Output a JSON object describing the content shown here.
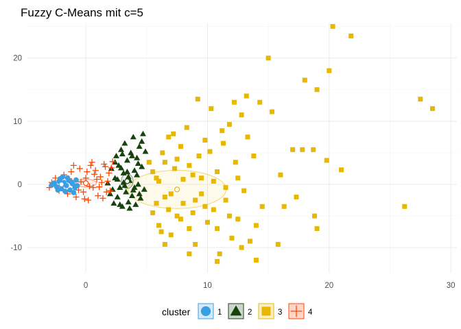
{
  "chart_data": {
    "type": "scatter",
    "title": "Fuzzy C-Means mit c=5",
    "xlabel": "",
    "ylabel": "",
    "xlim": [
      -4.8,
      30.5
    ],
    "ylim": [
      -14,
      25.5
    ],
    "x_ticks": [
      0,
      10,
      20,
      30
    ],
    "y_ticks": [
      -10,
      0,
      10,
      20
    ],
    "grid": true,
    "legend": {
      "title": "cluster",
      "position": "bottom",
      "entries": [
        {
          "label": "1",
          "shape": "circle",
          "color": "#3a9fe2"
        },
        {
          "label": "2",
          "shape": "triangle",
          "color": "#17440d"
        },
        {
          "label": "3",
          "shape": "square",
          "color": "#e6b800"
        },
        {
          "label": "4",
          "shape": "plus",
          "color": "#ff4500"
        }
      ]
    },
    "series": [
      {
        "name": "1",
        "shape": "circle",
        "color": "#3a9fe2",
        "center": [
          -2.0,
          0.0
        ],
        "points": [
          [
            -2.6,
            0.2
          ],
          [
            -2.4,
            -0.4
          ],
          [
            -2.2,
            0.5
          ],
          [
            -2.0,
            -0.7
          ],
          [
            -1.8,
            0.3
          ],
          [
            -1.6,
            -0.2
          ],
          [
            -1.4,
            0.6
          ],
          [
            -1.3,
            -0.9
          ],
          [
            -1.1,
            0.1
          ],
          [
            -0.9,
            -0.5
          ],
          [
            -2.8,
            -0.1
          ],
          [
            -2.1,
            0.9
          ],
          [
            -1.7,
            -1.1
          ],
          [
            -1.5,
            1.0
          ],
          [
            -1.2,
            0.4
          ],
          [
            -1.0,
            -1.3
          ],
          [
            -0.8,
            0.7
          ],
          [
            -2.3,
            -0.9
          ],
          [
            -1.9,
            1.2
          ],
          [
            -0.7,
            -0.2
          ]
        ]
      },
      {
        "name": "2",
        "shape": "triangle",
        "color": "#17440d",
        "center": [
          3.4,
          0.5
        ],
        "points": [
          [
            1.8,
            0.2
          ],
          [
            2.0,
            -1.5
          ],
          [
            2.1,
            2.5
          ],
          [
            2.3,
            -3.0
          ],
          [
            2.4,
            1.0
          ],
          [
            2.5,
            4.5
          ],
          [
            2.6,
            -2.0
          ],
          [
            2.7,
            3.0
          ],
          [
            2.8,
            -0.5
          ],
          [
            2.9,
            5.5
          ],
          [
            3.0,
            -3.5
          ],
          [
            3.1,
            1.8
          ],
          [
            3.2,
            6.5
          ],
          [
            3.3,
            -1.2
          ],
          [
            3.4,
            3.8
          ],
          [
            3.5,
            -2.8
          ],
          [
            3.6,
            0.6
          ],
          [
            3.7,
            5.0
          ],
          [
            3.8,
            -1.8
          ],
          [
            3.9,
            7.5
          ],
          [
            4.0,
            2.2
          ],
          [
            4.1,
            -3.2
          ],
          [
            4.2,
            4.2
          ],
          [
            4.3,
            0.0
          ],
          [
            4.4,
            6.0
          ],
          [
            4.5,
            -2.2
          ],
          [
            4.6,
            2.8
          ],
          [
            4.7,
            8.0
          ],
          [
            4.8,
            -0.8
          ],
          [
            4.9,
            5.2
          ],
          [
            2.2,
            -0.8
          ],
          [
            2.4,
            3.5
          ],
          [
            2.6,
            0.8
          ],
          [
            2.8,
            -3.2
          ],
          [
            3.0,
            4.8
          ],
          [
            3.2,
            -0.2
          ],
          [
            3.4,
            2.0
          ],
          [
            3.6,
            -3.8
          ],
          [
            3.8,
            4.5
          ],
          [
            4.0,
            -0.5
          ],
          [
            4.2,
            1.5
          ],
          [
            4.4,
            -1.5
          ],
          [
            4.6,
            6.8
          ],
          [
            3.1,
            0.3
          ],
          [
            3.5,
            1.2
          ],
          [
            3.9,
            -0.9
          ],
          [
            2.9,
            2.6
          ],
          [
            4.3,
            3.3
          ]
        ]
      },
      {
        "name": "3",
        "shape": "square",
        "color": "#e6b800",
        "center": [
          7.5,
          -0.8
        ],
        "points": [
          [
            5.2,
            3.5
          ],
          [
            5.5,
            -4.5
          ],
          [
            5.8,
            1.0
          ],
          [
            6.0,
            -6.5
          ],
          [
            6.3,
            5.0
          ],
          [
            6.5,
            -2.0
          ],
          [
            6.8,
            7.5
          ],
          [
            7.0,
            -8.0
          ],
          [
            7.3,
            2.5
          ],
          [
            7.5,
            -5.0
          ],
          [
            7.8,
            6.0
          ],
          [
            8.0,
            -3.0
          ],
          [
            8.3,
            9.0
          ],
          [
            8.5,
            -7.0
          ],
          [
            8.8,
            1.5
          ],
          [
            9.0,
            -9.5
          ],
          [
            9.3,
            4.5
          ],
          [
            9.5,
            -1.5
          ],
          [
            9.8,
            7.0
          ],
          [
            10.0,
            -6.0
          ],
          [
            10.3,
            12.0
          ],
          [
            10.5,
            -4.0
          ],
          [
            10.8,
            2.0
          ],
          [
            11.0,
            -11.0
          ],
          [
            11.3,
            6.5
          ],
          [
            11.5,
            -2.5
          ],
          [
            11.8,
            9.5
          ],
          [
            12.0,
            -8.5
          ],
          [
            12.3,
            3.5
          ],
          [
            12.5,
            -5.5
          ],
          [
            12.8,
            11.0
          ],
          [
            13.0,
            -1.0
          ],
          [
            13.3,
            7.5
          ],
          [
            13.5,
            -9.0
          ],
          [
            13.8,
            4.5
          ],
          [
            14.0,
            -6.5
          ],
          [
            14.3,
            13.0
          ],
          [
            14.5,
            -3.5
          ],
          [
            15.0,
            20.0
          ],
          [
            15.3,
            11.5
          ],
          [
            15.8,
            -9.5
          ],
          [
            16.0,
            1.5
          ],
          [
            16.3,
            -3.5
          ],
          [
            17.0,
            5.5
          ],
          [
            17.3,
            -2.0
          ],
          [
            17.8,
            5.5
          ],
          [
            18.0,
            16.5
          ],
          [
            18.7,
            5.5
          ],
          [
            18.8,
            -5.0
          ],
          [
            19.0,
            15.0
          ],
          [
            19.0,
            -7.0
          ],
          [
            19.8,
            3.8
          ],
          [
            20.0,
            18.0
          ],
          [
            20.3,
            25.0
          ],
          [
            21.0,
            2.3
          ],
          [
            21.8,
            23.5
          ],
          [
            26.2,
            -3.5
          ],
          [
            27.5,
            13.5
          ],
          [
            28.5,
            12.0
          ],
          [
            6.5,
            -9.5
          ],
          [
            8.5,
            -11.0
          ],
          [
            10.8,
            -12.2
          ],
          [
            14.0,
            -12.0
          ],
          [
            6.0,
            0.5
          ],
          [
            7.0,
            -1.5
          ],
          [
            8.0,
            0.8
          ],
          [
            9.0,
            -2.5
          ],
          [
            5.5,
            2.0
          ],
          [
            6.5,
            3.5
          ],
          [
            7.5,
            4.0
          ],
          [
            8.5,
            3.0
          ],
          [
            9.5,
            1.0
          ],
          [
            10.5,
            0.5
          ],
          [
            11.5,
            -0.5
          ],
          [
            12.5,
            1.0
          ],
          [
            5.8,
            -3.0
          ],
          [
            6.8,
            -4.0
          ],
          [
            7.8,
            -5.5
          ],
          [
            8.8,
            -4.5
          ],
          [
            9.8,
            -3.5
          ],
          [
            10.8,
            -7.0
          ],
          [
            11.8,
            -5.0
          ],
          [
            12.2,
            13.0
          ],
          [
            12.8,
            -10.0
          ],
          [
            9.2,
            13.5
          ],
          [
            13.2,
            14.0
          ],
          [
            11.2,
            8.5
          ],
          [
            7.2,
            8.0
          ],
          [
            10.2,
            5.2
          ],
          [
            6.2,
            -7.5
          ]
        ]
      },
      {
        "name": "4",
        "shape": "plus",
        "color": "#ff4500",
        "center": [
          0.0,
          0.2
        ],
        "points": [
          [
            -3.0,
            -0.5
          ],
          [
            -2.5,
            1.0
          ],
          [
            -2.2,
            -1.0
          ],
          [
            -1.8,
            1.5
          ],
          [
            -1.5,
            -1.5
          ],
          [
            -1.2,
            2.0
          ],
          [
            -1.0,
            0.0
          ],
          [
            -0.8,
            -2.0
          ],
          [
            -0.5,
            2.5
          ],
          [
            -0.2,
            -1.2
          ],
          [
            0.0,
            1.0
          ],
          [
            0.2,
            -2.5
          ],
          [
            0.4,
            3.0
          ],
          [
            0.6,
            -0.5
          ],
          [
            0.8,
            2.2
          ],
          [
            1.0,
            -1.8
          ],
          [
            1.2,
            1.2
          ],
          [
            1.4,
            -2.2
          ],
          [
            1.6,
            2.8
          ],
          [
            1.8,
            0.5
          ],
          [
            -1.0,
            3.0
          ],
          [
            0.5,
            3.5
          ],
          [
            1.5,
            3.2
          ],
          [
            2.0,
            -1.0
          ],
          [
            -0.4,
            0.4
          ],
          [
            0.3,
            -0.3
          ],
          [
            0.9,
            0.8
          ],
          [
            -1.4,
            0.9
          ],
          [
            1.1,
            -0.4
          ],
          [
            -0.6,
            -0.9
          ],
          [
            0.7,
            1.6
          ],
          [
            1.7,
            -1.2
          ],
          [
            -2.8,
            0.3
          ],
          [
            -2.0,
            -0.3
          ],
          [
            0.1,
            2.0
          ],
          [
            1.3,
            0.3
          ],
          [
            1.9,
            1.8
          ],
          [
            -0.1,
            -2.3
          ],
          [
            2.1,
            2.6
          ],
          [
            2.2,
            3.6
          ]
        ]
      }
    ]
  }
}
